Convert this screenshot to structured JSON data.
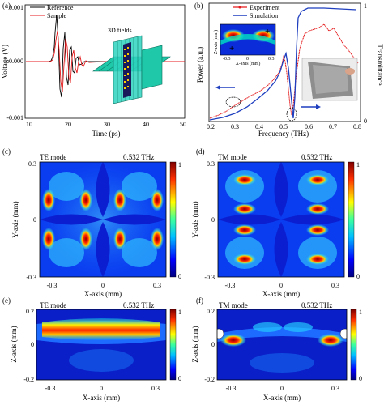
{
  "panel_letters": {
    "a": "(a)",
    "b": "(b)",
    "c": "(c)",
    "d": "(d)",
    "e": "(e)",
    "f": "(f)"
  },
  "panel_a": {
    "ylabel": "Voltage (V)",
    "xlabel": "Time (ps)",
    "y_ticks": [
      "0.001",
      "0.000",
      "-0.001"
    ],
    "x_ticks": [
      "10",
      "20",
      "30",
      "40",
      "50"
    ],
    "legend": [
      "Reference",
      "Sample"
    ],
    "inset_label": "3D fields",
    "colors": {
      "reference": "#000000",
      "sample": "#e41a1c"
    }
  },
  "panel_b": {
    "ylabel_left": "Power (a.u.)",
    "ylabel_right": "Transmittance",
    "xlabel": "Frequency (THz)",
    "x_ticks": [
      "0.2",
      "0.3",
      "0.4",
      "0.5",
      "0.6",
      "0.7",
      "0.8"
    ],
    "y_right_ticks": [
      "1",
      "0"
    ],
    "legend": [
      "Experiment",
      "Simulation"
    ],
    "inset": {
      "ylabel": "Z-axis (mm)",
      "xlabel": "X-axis (mm)",
      "x_ticks": [
        "-0.3",
        "0",
        "0.3"
      ],
      "signs": [
        "-",
        "+",
        "+",
        "-"
      ]
    },
    "colors": {
      "experiment": "#e41a1c",
      "simulation": "#1f3fbf"
    }
  },
  "map_c": {
    "mode": "TE mode",
    "freq": "0.532 THz",
    "ylabel": "Y-axis (mm)",
    "xlabel": "X-axis (mm)",
    "y_ticks": [
      "0.3",
      "0",
      "-0.3"
    ],
    "x_ticks": [
      "-0.3",
      "0",
      "0.3"
    ],
    "cb": [
      "1",
      "0"
    ]
  },
  "map_d": {
    "mode": "TM mode",
    "freq": "0.532 THz",
    "ylabel": "Y-axis (mm)",
    "xlabel": "X-axis (mm)",
    "y_ticks": [
      "0.3",
      "0",
      "-0.3"
    ],
    "x_ticks": [
      "-0.3",
      "0",
      "0.3"
    ],
    "cb": [
      "1",
      "0"
    ]
  },
  "map_e": {
    "mode": "TE mode",
    "freq": "0.532 THz",
    "ylabel": "Z-axis (mm)",
    "xlabel": "X-axis (mm)",
    "y_ticks": [
      "0.2",
      "0",
      "-0.2"
    ],
    "x_ticks": [
      "-0.3",
      "0",
      "0.3"
    ],
    "cb": [
      "1",
      "0"
    ]
  },
  "map_f": {
    "mode": "TM mode",
    "freq": "0.532 THz",
    "ylabel": "Z-axis (mm)",
    "xlabel": "X-axis (mm)",
    "y_ticks": [
      "0.2",
      "0",
      "-0.2"
    ],
    "x_ticks": [
      "-0.3",
      "0",
      "0.3"
    ],
    "cb": [
      "1",
      "0"
    ]
  },
  "chart_data": [
    {
      "type": "line",
      "x": [
        10,
        13,
        15,
        16,
        17,
        18,
        19,
        20,
        22,
        25
      ],
      "series": [
        {
          "name": "Reference",
          "values": [
            0,
            0,
            0.0002,
            0.0009,
            -0.0006,
            0.0004,
            -0.0002,
            0.0001,
            0,
            0
          ]
        },
        {
          "name": "Sample",
          "values": [
            0,
            0,
            0.0001,
            0.0006,
            -0.0005,
            0.0004,
            -0.0003,
            0.0002,
            -0.0001,
            0
          ]
        }
      ],
      "xlabel": "Time (ps)",
      "ylabel": "Voltage (V)",
      "xlim": [
        10,
        50
      ],
      "ylim": [
        -0.001,
        0.001
      ]
    },
    {
      "type": "line",
      "x": [
        0.2,
        0.3,
        0.4,
        0.45,
        0.5,
        0.52,
        0.532,
        0.55,
        0.6,
        0.7,
        0.8
      ],
      "series": [
        {
          "name": "Experiment",
          "values": [
            0.03,
            0.12,
            0.22,
            0.3,
            0.42,
            0.35,
            0.02,
            0.9,
            0.9,
            0.85,
            0.8
          ]
        },
        {
          "name": "Simulation",
          "values": [
            0.05,
            0.2,
            0.35,
            0.45,
            0.58,
            0.5,
            0.0,
            0.98,
            0.98,
            0.97,
            0.95
          ]
        }
      ],
      "xlabel": "Frequency (THz)",
      "ylabel": "Power (a.u.)",
      "ylabel_right": "Transmittance",
      "xlim": [
        0.2,
        0.8
      ],
      "ylim_right": [
        0,
        1
      ]
    }
  ]
}
